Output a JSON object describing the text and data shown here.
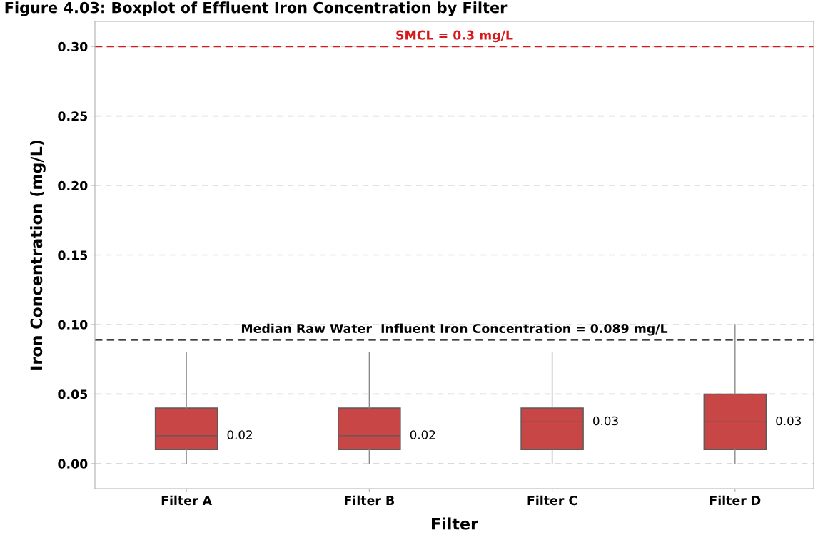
{
  "chart_data": {
    "type": "box",
    "title": "Figure 4.03: Boxplot of Effluent Iron Concentration by Filter",
    "xlabel": "Filter",
    "ylabel": "Iron Concentration (mg/L)",
    "categories": [
      "Filter A",
      "Filter B",
      "Filter C",
      "Filter D"
    ],
    "boxes": [
      {
        "low": 0.0,
        "q1": 0.01,
        "median": 0.02,
        "q3": 0.04,
        "high": 0.08
      },
      {
        "low": 0.0,
        "q1": 0.01,
        "median": 0.02,
        "q3": 0.04,
        "high": 0.08
      },
      {
        "low": 0.0,
        "q1": 0.01,
        "median": 0.03,
        "q3": 0.04,
        "high": 0.08
      },
      {
        "low": 0.0,
        "q1": 0.01,
        "median": 0.03,
        "q3": 0.05,
        "high": 0.1
      }
    ],
    "value_labels": [
      "0.02",
      "0.02",
      "0.03",
      "0.03"
    ],
    "color": "#c84646",
    "ylim": [
      -0.018,
      0.318
    ],
    "yticks": [
      {
        "value": 0,
        "label": "0.00"
      },
      0.05,
      {
        "value": 0.1,
        "label": "0.10"
      },
      0.15,
      {
        "value": 0.2,
        "label": "0.20"
      },
      0.25,
      {
        "value": 0.3,
        "label": "0.30"
      }
    ],
    "grid": "y",
    "ref_lines": [
      {
        "axis": "y",
        "value": 0.3,
        "label": "SMCL = 0.3 mg/L",
        "color": "#d7191c",
        "line_style": "dashed"
      },
      {
        "axis": "y",
        "value": 0.089,
        "label": "Median Raw Water  Influent Iron Concentration = 0.089 mg/L",
        "color": "#000000",
        "line_style": "dashed"
      }
    ]
  }
}
